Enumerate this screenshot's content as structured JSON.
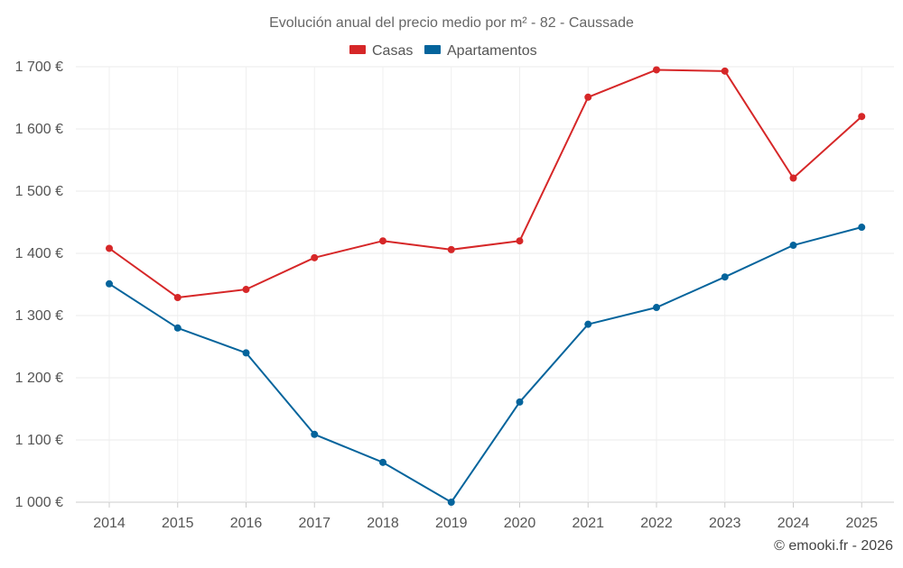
{
  "chart_data": {
    "type": "line",
    "title": "Evolución anual del precio medio por m² - 82 - Caussade",
    "xlabel": "",
    "ylabel": "",
    "categories": [
      "2014",
      "2015",
      "2016",
      "2017",
      "2018",
      "2019",
      "2020",
      "2021",
      "2022",
      "2023",
      "2024",
      "2025"
    ],
    "ylim": [
      1000,
      1700
    ],
    "yticks": [
      1000,
      1100,
      1200,
      1300,
      1400,
      1500,
      1600,
      1700
    ],
    "ytick_labels": [
      "1 000 €",
      "1 100 €",
      "1 200 €",
      "1 300 €",
      "1 400 €",
      "1 500 €",
      "1 600 €",
      "1 700 €"
    ],
    "grid": true,
    "legend_position": "top-center",
    "series": [
      {
        "name": "Casas",
        "color": "#d62728",
        "values": [
          1408,
          1329,
          1342,
          1393,
          1420,
          1406,
          1420,
          1651,
          1695,
          1693,
          1521,
          1620
        ]
      },
      {
        "name": "Apartamentos",
        "color": "#04649c",
        "values": [
          1351,
          1280,
          1240,
          1109,
          1064,
          1000,
          1161,
          1286,
          1313,
          1362,
          1413,
          1442
        ]
      }
    ],
    "credit": "© emooki.fr - 2026"
  }
}
